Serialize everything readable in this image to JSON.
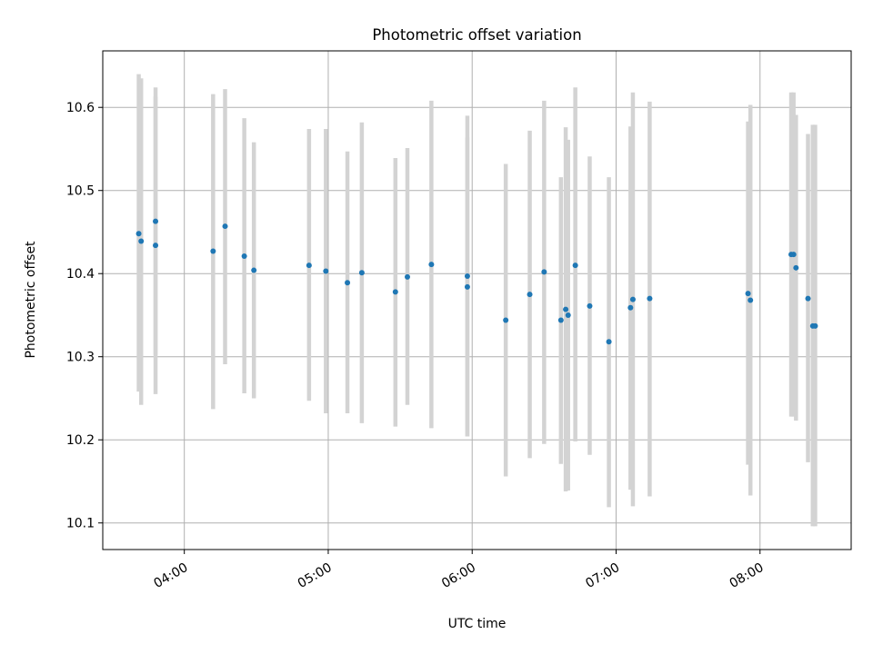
{
  "chart_data": {
    "type": "scatter",
    "title": "Photometric offset variation",
    "xlabel": "UTC time",
    "ylabel": "Photometric offset",
    "x_ticks": [
      "04:00",
      "05:00",
      "06:00",
      "07:00",
      "08:00"
    ],
    "y_ticks": [
      "10.1",
      "10.2",
      "10.3",
      "10.4",
      "10.5",
      "10.6"
    ],
    "xlim": [
      "03:26",
      "08:38"
    ],
    "ylim": [
      10.068,
      10.668
    ],
    "grid": true,
    "marker_color": "#1f77b4",
    "errorbar_color": "#d3d3d3",
    "points": [
      {
        "x": "03:41",
        "y": 10.448,
        "low": 10.258,
        "high": 10.64
      },
      {
        "x": "03:42",
        "y": 10.439,
        "low": 10.242,
        "high": 10.635
      },
      {
        "x": "03:48",
        "y": 10.434,
        "low": 10.255,
        "high": 10.613
      },
      {
        "x": "03:48",
        "y": 10.463,
        "low": 10.302,
        "high": 10.624
      },
      {
        "x": "04:12",
        "y": 10.427,
        "low": 10.237,
        "high": 10.616
      },
      {
        "x": "04:17",
        "y": 10.457,
        "low": 10.291,
        "high": 10.622
      },
      {
        "x": "04:25",
        "y": 10.421,
        "low": 10.256,
        "high": 10.587
      },
      {
        "x": "04:29",
        "y": 10.404,
        "low": 10.25,
        "high": 10.558
      },
      {
        "x": "04:52",
        "y": 10.41,
        "low": 10.247,
        "high": 10.574
      },
      {
        "x": "04:59",
        "y": 10.403,
        "low": 10.232,
        "high": 10.574
      },
      {
        "x": "05:08",
        "y": 10.389,
        "low": 10.232,
        "high": 10.547
      },
      {
        "x": "05:14",
        "y": 10.401,
        "low": 10.22,
        "high": 10.582
      },
      {
        "x": "05:28",
        "y": 10.378,
        "low": 10.216,
        "high": 10.539
      },
      {
        "x": "05:33",
        "y": 10.396,
        "low": 10.242,
        "high": 10.551
      },
      {
        "x": "05:43",
        "y": 10.411,
        "low": 10.214,
        "high": 10.608
      },
      {
        "x": "05:58",
        "y": 10.384,
        "low": 10.204,
        "high": 10.564
      },
      {
        "x": "05:58",
        "y": 10.397,
        "low": 10.204,
        "high": 10.59
      },
      {
        "x": "06:14",
        "y": 10.344,
        "low": 10.156,
        "high": 10.532
      },
      {
        "x": "06:24",
        "y": 10.375,
        "low": 10.178,
        "high": 10.572
      },
      {
        "x": "06:30",
        "y": 10.402,
        "low": 10.195,
        "high": 10.608
      },
      {
        "x": "06:37",
        "y": 10.344,
        "low": 10.171,
        "high": 10.516
      },
      {
        "x": "06:39",
        "y": 10.357,
        "low": 10.138,
        "high": 10.576
      },
      {
        "x": "06:40",
        "y": 10.35,
        "low": 10.139,
        "high": 10.561
      },
      {
        "x": "06:43",
        "y": 10.41,
        "low": 10.198,
        "high": 10.624
      },
      {
        "x": "06:49",
        "y": 10.361,
        "low": 10.182,
        "high": 10.541
      },
      {
        "x": "06:57",
        "y": 10.318,
        "low": 10.119,
        "high": 10.516
      },
      {
        "x": "07:06",
        "y": 10.359,
        "low": 10.14,
        "high": 10.577
      },
      {
        "x": "07:07",
        "y": 10.369,
        "low": 10.12,
        "high": 10.618
      },
      {
        "x": "07:14",
        "y": 10.37,
        "low": 10.132,
        "high": 10.607
      },
      {
        "x": "07:55",
        "y": 10.376,
        "low": 10.17,
        "high": 10.583
      },
      {
        "x": "07:56",
        "y": 10.368,
        "low": 10.133,
        "high": 10.603
      },
      {
        "x": "08:13",
        "y": 10.423,
        "low": 10.228,
        "high": 10.618
      },
      {
        "x": "08:14",
        "y": 10.423,
        "low": 10.228,
        "high": 10.618
      },
      {
        "x": "08:15",
        "y": 10.407,
        "low": 10.223,
        "high": 10.591
      },
      {
        "x": "08:20",
        "y": 10.37,
        "low": 10.173,
        "high": 10.568
      },
      {
        "x": "08:22",
        "y": 10.337,
        "low": 10.096,
        "high": 10.579
      },
      {
        "x": "08:23",
        "y": 10.337,
        "low": 10.096,
        "high": 10.579
      }
    ]
  }
}
